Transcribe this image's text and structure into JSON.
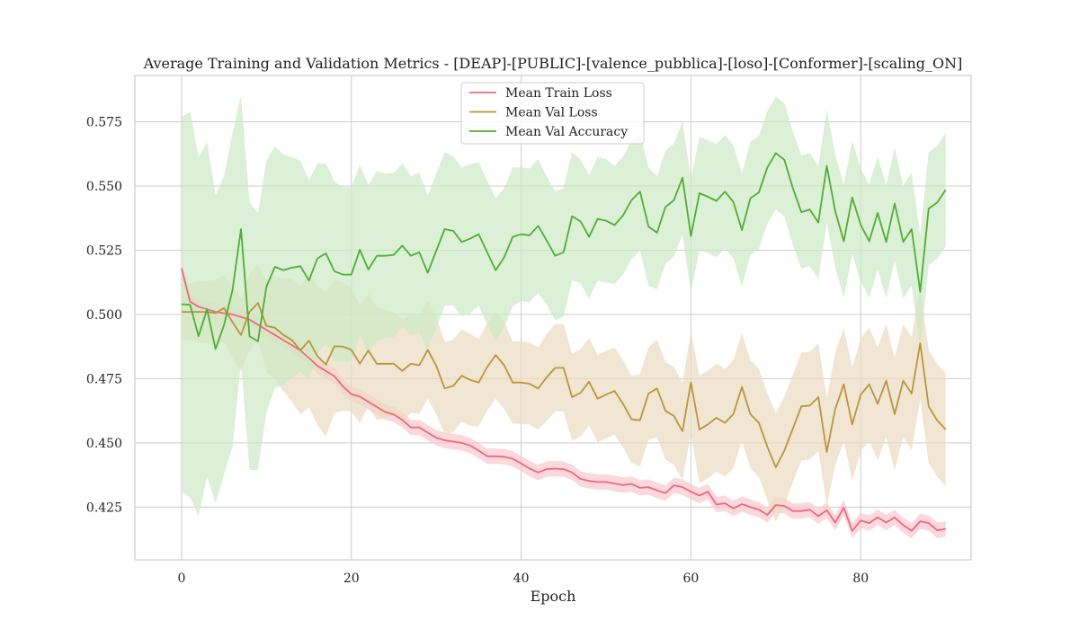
{
  "chart_data": {
    "type": "line",
    "title": "Average Training and Validation Metrics - [DEAP]-[PUBLIC]-[valence_pubblica]-[loso]-[Conformer]-[scaling_ON]",
    "xlabel": "Epoch",
    "ylabel": "",
    "xlim": [
      -5.5,
      93
    ],
    "ylim": [
      0.4045,
      0.593
    ],
    "xticks": [
      0,
      20,
      40,
      60,
      80
    ],
    "yticks": [
      0.425,
      0.45,
      0.475,
      0.5,
      0.525,
      0.55,
      0.575
    ],
    "ytick_labels": [
      "0.425",
      "0.450",
      "0.475",
      "0.500",
      "0.525",
      "0.550",
      "0.575"
    ],
    "grid": true,
    "legend_position": "upper center",
    "series": [
      {
        "name": "Mean Train Loss",
        "color": "#f0687a",
        "band_color": "#f9c8d0",
        "band_width": [
          0.003,
          0.003,
          0.003,
          0.003,
          0.003,
          0.003,
          0.003,
          0.003,
          0.003,
          0.003,
          0.003,
          0.003,
          0.003,
          0.003,
          0.003,
          0.003,
          0.003,
          0.003,
          0.003,
          0.003,
          0.003,
          0.003,
          0.003,
          0.003,
          0.003,
          0.003,
          0.003,
          0.003,
          0.003,
          0.003,
          0.003,
          0.003,
          0.003,
          0.003,
          0.003,
          0.003,
          0.003,
          0.003,
          0.003,
          0.003,
          0.003,
          0.003,
          0.003,
          0.003,
          0.003,
          0.003,
          0.003,
          0.003,
          0.003,
          0.003,
          0.003,
          0.003,
          0.003,
          0.003,
          0.003,
          0.003,
          0.003,
          0.003,
          0.003,
          0.003,
          0.003,
          0.003,
          0.003,
          0.003,
          0.003,
          0.003,
          0.003,
          0.003,
          0.003,
          0.003,
          0.003,
          0.003,
          0.003,
          0.003,
          0.003,
          0.003,
          0.003,
          0.003,
          0.003,
          0.003,
          0.003,
          0.003,
          0.003,
          0.003,
          0.003,
          0.003,
          0.003,
          0.003,
          0.003,
          0.003,
          0.003
        ],
        "values": [
          0.518,
          0.505,
          0.503,
          0.502,
          0.501,
          0.5005,
          0.5,
          0.499,
          0.498,
          0.496,
          0.494,
          0.492,
          0.49,
          0.488,
          0.486,
          0.483,
          0.48,
          0.478,
          0.476,
          0.472,
          0.469,
          0.468,
          0.466,
          0.464,
          0.462,
          0.461,
          0.459,
          0.456,
          0.456,
          0.454,
          0.452,
          0.451,
          0.4505,
          0.45,
          0.449,
          0.447,
          0.4448,
          0.4448,
          0.4446,
          0.4438,
          0.442,
          0.44,
          0.4385,
          0.4398,
          0.44,
          0.4398,
          0.4385,
          0.436,
          0.4352,
          0.4348,
          0.4348,
          0.4342,
          0.4336,
          0.434,
          0.4325,
          0.4328,
          0.4315,
          0.4305,
          0.4335,
          0.4328,
          0.431,
          0.4295,
          0.431,
          0.426,
          0.4265,
          0.4245,
          0.4262,
          0.425,
          0.424,
          0.422,
          0.4258,
          0.4255,
          0.4235,
          0.4235,
          0.424,
          0.4215,
          0.4238,
          0.419,
          0.4248,
          0.4158,
          0.4198,
          0.4188,
          0.421,
          0.419,
          0.421,
          0.418,
          0.4158,
          0.4195,
          0.4188,
          0.416,
          0.4165
        ]
      },
      {
        "name": "Mean Val Loss",
        "color": "#b8963a",
        "band_color": "#ebdcc2",
        "band_width": [
          0.011,
          0.011,
          0.012,
          0.012,
          0.013,
          0.013,
          0.014,
          0.014,
          0.015,
          0.015,
          0.018,
          0.02,
          0.022,
          0.024,
          0.025,
          0.026,
          0.027,
          0.028,
          0.026,
          0.025,
          0.024,
          0.023,
          0.022,
          0.022,
          0.021,
          0.02,
          0.02,
          0.019,
          0.019,
          0.019,
          0.019,
          0.018,
          0.018,
          0.018,
          0.018,
          0.017,
          0.017,
          0.017,
          0.017,
          0.016,
          0.016,
          0.016,
          0.016,
          0.017,
          0.017,
          0.017,
          0.017,
          0.017,
          0.017,
          0.017,
          0.017,
          0.017,
          0.017,
          0.017,
          0.018,
          0.018,
          0.019,
          0.019,
          0.019,
          0.019,
          0.02,
          0.021,
          0.021,
          0.021,
          0.021,
          0.021,
          0.021,
          0.021,
          0.021,
          0.021,
          0.021,
          0.021,
          0.021,
          0.021,
          0.021,
          0.021,
          0.021,
          0.022,
          0.022,
          0.022,
          0.022,
          0.022,
          0.022,
          0.022,
          0.022,
          0.022,
          0.022,
          0.022,
          0.022,
          0.022,
          0.022
        ],
        "values": [
          0.501,
          0.501,
          0.501,
          0.501,
          0.5005,
          0.5025,
          0.497,
          0.492,
          0.501,
          0.5045,
          0.4955,
          0.4948,
          0.492,
          0.49,
          0.486,
          0.4898,
          0.4838,
          0.4805,
          0.4876,
          0.4875,
          0.4862,
          0.4808,
          0.486,
          0.4808,
          0.4808,
          0.4808,
          0.478,
          0.4808,
          0.4802,
          0.4862,
          0.48,
          0.4712,
          0.4722,
          0.4762,
          0.4745,
          0.4735,
          0.4795,
          0.4842,
          0.4802,
          0.4735,
          0.4735,
          0.473,
          0.4712,
          0.4755,
          0.4792,
          0.4792,
          0.4678,
          0.4695,
          0.4738,
          0.4672,
          0.4688,
          0.4702,
          0.4652,
          0.4592,
          0.4588,
          0.4692,
          0.4712,
          0.4625,
          0.4605,
          0.4545,
          0.4735,
          0.4552,
          0.4572,
          0.4598,
          0.4578,
          0.4612,
          0.4718,
          0.4612,
          0.4578,
          0.4485,
          0.4405,
          0.447,
          0.4555,
          0.4642,
          0.4645,
          0.4678,
          0.4465,
          0.4632,
          0.4728,
          0.4572,
          0.4688,
          0.4728,
          0.4652,
          0.4742,
          0.4612,
          0.4742,
          0.4692,
          0.4888,
          0.4642,
          0.4588,
          0.4552
        ]
      },
      {
        "name": "Mean Val Accuracy",
        "color": "#4fae33",
        "band_color": "#cce9c4",
        "band_width": [
          0.073,
          0.075,
          0.07,
          0.065,
          0.06,
          0.058,
          0.061,
          0.052,
          0.052,
          0.05,
          0.049,
          0.047,
          0.045,
          0.043,
          0.041,
          0.039,
          0.037,
          0.035,
          0.035,
          0.034,
          0.034,
          0.033,
          0.033,
          0.033,
          0.032,
          0.032,
          0.032,
          0.031,
          0.031,
          0.03,
          0.03,
          0.03,
          0.029,
          0.029,
          0.029,
          0.028,
          0.028,
          0.028,
          0.027,
          0.027,
          0.026,
          0.026,
          0.026,
          0.025,
          0.025,
          0.025,
          0.025,
          0.024,
          0.024,
          0.024,
          0.024,
          0.023,
          0.023,
          0.023,
          0.023,
          0.023,
          0.022,
          0.022,
          0.022,
          0.022,
          0.022,
          0.022,
          0.022,
          0.022,
          0.022,
          0.022,
          0.022,
          0.022,
          0.022,
          0.022,
          0.022,
          0.022,
          0.022,
          0.022,
          0.022,
          0.022,
          0.022,
          0.022,
          0.022,
          0.022,
          0.022,
          0.022,
          0.022,
          0.022,
          0.022,
          0.022,
          0.022,
          0.022,
          0.022,
          0.022,
          0.022
        ],
        "values": [
          0.504,
          0.5038,
          0.4915,
          0.502,
          0.4865,
          0.4958,
          0.5095,
          0.5332,
          0.4915,
          0.4895,
          0.5108,
          0.5185,
          0.5172,
          0.5182,
          0.5188,
          0.5132,
          0.5218,
          0.5238,
          0.5168,
          0.5155,
          0.5155,
          0.5252,
          0.5175,
          0.5228,
          0.5228,
          0.5232,
          0.5268,
          0.5228,
          0.5242,
          0.5162,
          0.5248,
          0.5332,
          0.5325,
          0.5282,
          0.5295,
          0.5312,
          0.5242,
          0.5172,
          0.5222,
          0.5302,
          0.5312,
          0.5308,
          0.5345,
          0.5288,
          0.5228,
          0.5242,
          0.5382,
          0.5362,
          0.5302,
          0.5372,
          0.5365,
          0.5348,
          0.5385,
          0.5445,
          0.5478,
          0.5342,
          0.5318,
          0.5418,
          0.5445,
          0.5532,
          0.5305,
          0.5472,
          0.5458,
          0.5442,
          0.5478,
          0.5438,
          0.5328,
          0.5452,
          0.5475,
          0.5572,
          0.5628,
          0.5602,
          0.5492,
          0.5398,
          0.5408,
          0.5358,
          0.5578,
          0.5402,
          0.5285,
          0.5455,
          0.5348,
          0.5285,
          0.5395,
          0.5282,
          0.5432,
          0.5282,
          0.5332,
          0.5088,
          0.5412,
          0.5435,
          0.5485
        ]
      }
    ]
  }
}
